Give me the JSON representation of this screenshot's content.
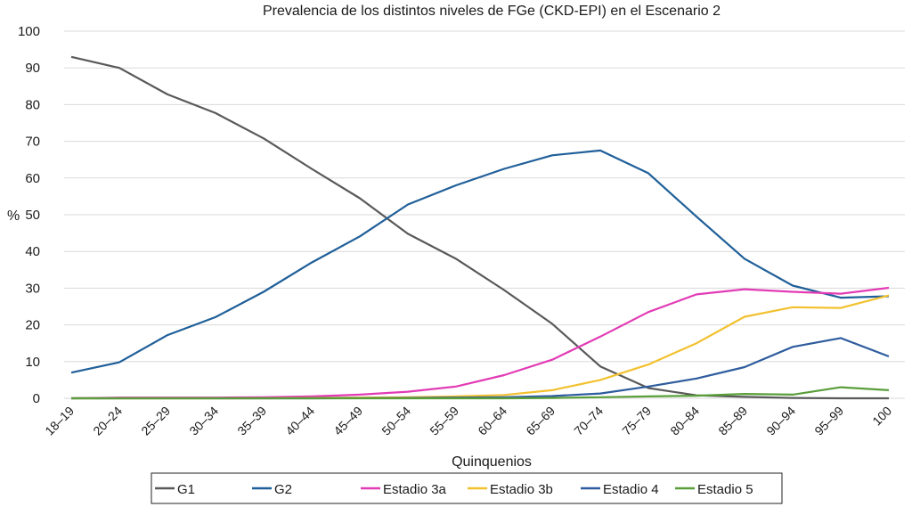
{
  "chart_data": {
    "type": "line",
    "title": "Prevalencia de los distintos niveles de FGe (CKD-EPI) en el Escenario 2",
    "xlabel": "Quinquenios",
    "ylabel": "%",
    "ylim": [
      0,
      100
    ],
    "yticks": [
      "0",
      "10",
      "20",
      "30",
      "40",
      "50",
      "60",
      "70",
      "80",
      "90",
      "100"
    ],
    "ytick_values": [
      0,
      10,
      20,
      30,
      40,
      50,
      60,
      70,
      80,
      90,
      100
    ],
    "grid": true,
    "legend_position": "bottom",
    "categories": [
      "18–19",
      "20–24",
      "25–29",
      "30–34",
      "35–39",
      "40–44",
      "45–49",
      "50–54",
      "55–59",
      "60–64",
      "65–69",
      "70–74",
      "75–79",
      "80–84",
      "85–89",
      "90–94",
      "95–99",
      "100"
    ],
    "series": [
      {
        "name": "G1",
        "color": "#595959",
        "values": [
          93,
          90,
          82.8,
          77.7,
          70.8,
          62.5,
          54.5,
          44.8,
          38,
          29.5,
          20.3,
          8.7,
          2.8,
          0.8,
          0.4,
          0.1,
          0,
          0
        ]
      },
      {
        "name": "G2",
        "color": "#1f5f99",
        "values": [
          7,
          9.8,
          17.2,
          22.1,
          29,
          37,
          44.1,
          52.8,
          58,
          62.5,
          66.2,
          67.5,
          61.3,
          49.5,
          38,
          30.7,
          27.4,
          27.8
        ]
      },
      {
        "name": "Estadio 3a",
        "color": "#e23bb5",
        "values": [
          0,
          0.2,
          0.2,
          0.2,
          0.3,
          0.5,
          1,
          1.8,
          3.2,
          6.3,
          10.5,
          16.8,
          23.5,
          28.3,
          29.7,
          29,
          28.5,
          30.1
        ]
      },
      {
        "name": "Estadio 3b",
        "color": "#f2c12e",
        "values": [
          0,
          0,
          0,
          0,
          0,
          0.1,
          0.2,
          0.3,
          0.5,
          0.9,
          2.2,
          5,
          9.2,
          15,
          22.2,
          24.8,
          24.6,
          28
        ]
      },
      {
        "name": "Estadio 4",
        "color": "#2e5c9e",
        "values": [
          0,
          0,
          0,
          0,
          0,
          0,
          0.05,
          0.1,
          0.2,
          0.3,
          0.6,
          1.3,
          3.2,
          5.4,
          8.5,
          14,
          16.4,
          11.4
        ]
      },
      {
        "name": "Estadio 5",
        "color": "#5a9e3a",
        "values": [
          0,
          0,
          0,
          0,
          0,
          0,
          0,
          0,
          0,
          0,
          0.1,
          0.3,
          0.5,
          0.7,
          1.2,
          1,
          3,
          2.2
        ]
      }
    ]
  }
}
